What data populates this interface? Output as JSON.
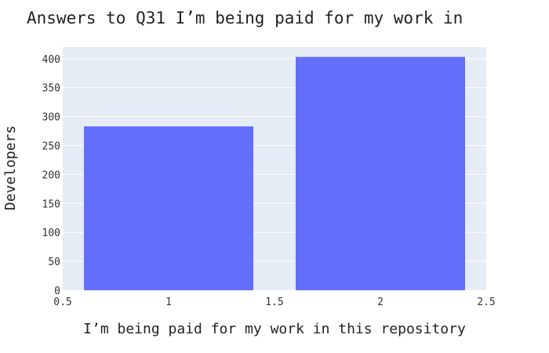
{
  "chart_data": {
    "type": "bar",
    "title": "Answers to Q31 I’m being paid for my work in",
    "xlabel": "I’m being paid for my work in this repository",
    "ylabel": "Developers",
    "x": [
      1,
      2
    ],
    "values": [
      283,
      403
    ],
    "xlim": [
      0.5,
      2.5
    ],
    "ylim": [
      0,
      420
    ],
    "xticks": [
      "0.5",
      "1",
      "1.5",
      "2",
      "2.5"
    ],
    "yticks": [
      "0",
      "50",
      "100",
      "150",
      "200",
      "250",
      "300",
      "350",
      "400"
    ],
    "grid": true,
    "colors": {
      "bar": "#636efa",
      "plot_bg": "#e5ecf6",
      "grid": "#ffffff"
    }
  }
}
